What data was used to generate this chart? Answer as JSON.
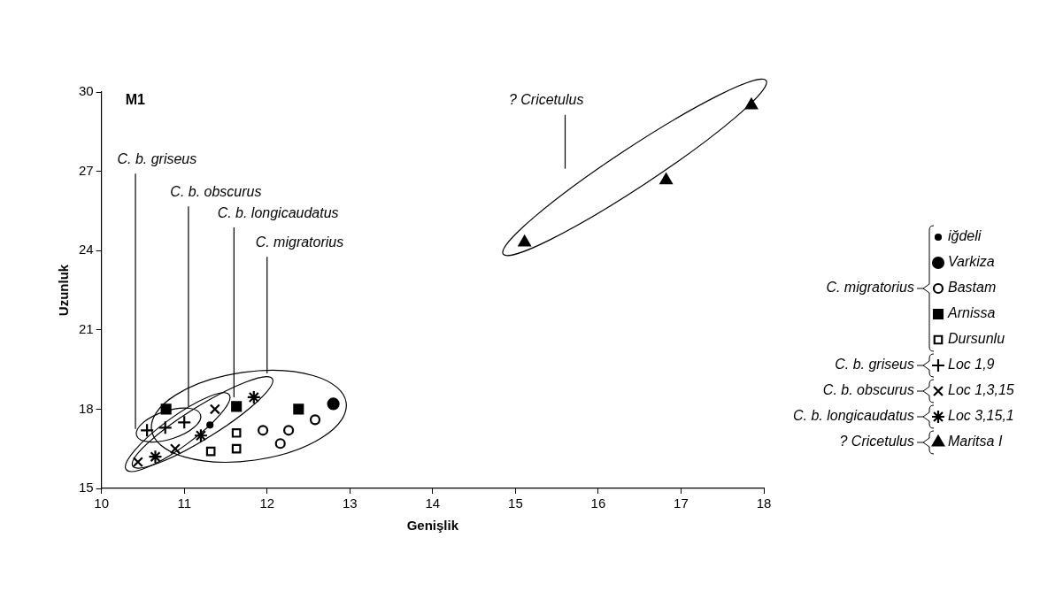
{
  "chart_data": {
    "type": "scatter",
    "title": "M1",
    "xlabel": "Genişlik",
    "ylabel": "Uzunluk",
    "xlim": [
      10,
      18
    ],
    "xticks": [
      10,
      11,
      12,
      13,
      14,
      15,
      16,
      17,
      18
    ],
    "ylim": [
      15,
      30
    ],
    "yticks": [
      15,
      18,
      21,
      24,
      27,
      30
    ],
    "grid": false,
    "legend": "right",
    "annotations": [
      "C. b. griseus",
      "C. b. obscurus",
      "C. b. longicaudatus",
      "C. migratorius",
      "? Cricetulus"
    ],
    "series": [
      {
        "name": "iğdeli",
        "color": "#000000",
        "marker": "dot",
        "x": [
          11.31
        ],
        "values": [
          17.4
        ]
      },
      {
        "name": "Varkiza",
        "color": "#000000",
        "marker": "circle",
        "x": [
          12.8
        ],
        "values": [
          18.2
        ]
      },
      {
        "name": "Bastam",
        "color": "#000000",
        "marker": "circle-open",
        "x": [
          11.95,
          12.26,
          12.16,
          12.58
        ],
        "values": [
          17.2,
          17.2,
          16.7,
          17.6
        ]
      },
      {
        "name": "Arnissa",
        "color": "#000000",
        "marker": "square",
        "x": [
          10.78,
          11.63,
          12.38
        ],
        "values": [
          18.0,
          18.1,
          18.0
        ]
      },
      {
        "name": "Dursunlu",
        "color": "#000000",
        "marker": "square-open",
        "x": [
          11.63,
          11.63,
          11.32
        ],
        "values": [
          17.1,
          16.5,
          16.4
        ]
      },
      {
        "name": "Loc 1,9",
        "color": "#000000",
        "marker": "plus",
        "x": [
          10.55,
          10.77,
          11.0
        ],
        "values": [
          17.2,
          17.3,
          17.5
        ]
      },
      {
        "name": "Loc 1,3,15",
        "color": "#000000",
        "marker": "x",
        "x": [
          10.44,
          10.89,
          11.37
        ],
        "values": [
          16.0,
          16.5,
          18.0
        ]
      },
      {
        "name": "Loc 3,15,1",
        "color": "#000000",
        "marker": "cross",
        "x": [
          10.65,
          11.2,
          11.84
        ],
        "values": [
          16.2,
          17.0,
          18.45
        ]
      },
      {
        "name": "Maritsa I",
        "color": "#000000",
        "marker": "triangle",
        "x": [
          15.11,
          16.82,
          17.85
        ],
        "values": [
          24.31,
          26.66,
          29.5
        ]
      }
    ]
  }
}
